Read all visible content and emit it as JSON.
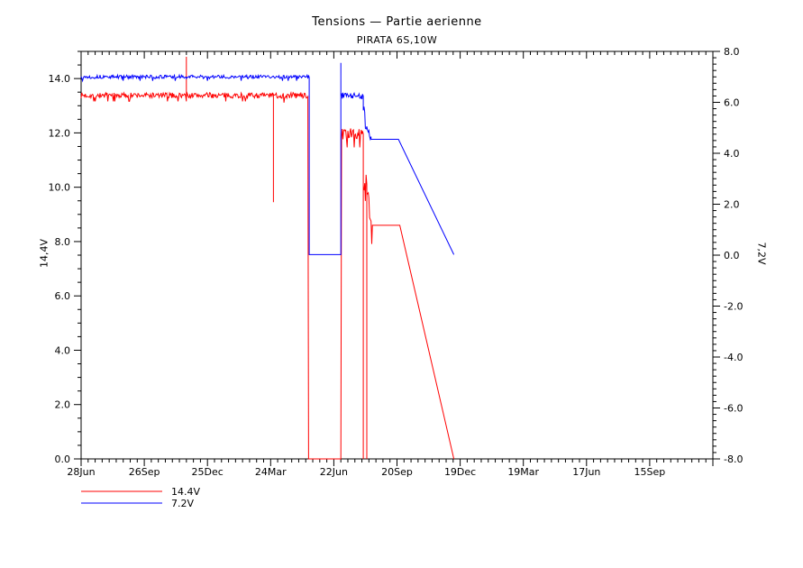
{
  "title": "Tensions — Partie aerienne",
  "subtitle": "PIRATA 6S,10W",
  "legend": [
    {
      "label": "14.4V",
      "color": "#ff0000"
    },
    {
      "label": "7.2V",
      "color": "#0000ff"
    }
  ],
  "colors": {
    "frame": "#000000",
    "background": "#ffffff",
    "series_red": "#ff0000",
    "series_blue": "#0000ff"
  },
  "axes": {
    "left": {
      "label": "14,4V",
      "tick_labels": [
        "0.0",
        "2.0",
        "4.0",
        "6.0",
        "8.0",
        "10.0",
        "12.0",
        "14.0"
      ]
    },
    "right": {
      "label": "7,2V",
      "tick_labels": [
        "-8.0",
        "-6.0",
        "-4.0",
        "-2.0",
        "0.0",
        "2.0",
        "4.0",
        "6.0",
        "8.0"
      ]
    },
    "x": {
      "tick_labels": [
        "28Jun",
        "26Sep",
        "25Dec",
        "24Mar",
        "22Jun",
        "20Sep",
        "19Dec",
        "19Mar",
        "17Jun",
        "15Sep"
      ]
    }
  },
  "chart_data": {
    "type": "line",
    "title": "Tensions — Partie aerienne",
    "subtitle": "PIRATA 6S,10W",
    "grid": false,
    "legend_position": "bottom-left",
    "x_axis": {
      "unit": "days since first sample",
      "tick_labels": [
        "28Jun",
        "26Sep",
        "25Dec",
        "24Mar",
        "22Jun",
        "20Sep",
        "19Dec",
        "19Mar",
        "17Jun",
        "15Sep"
      ],
      "major_interval_days": 90,
      "minor_interval_days": 10,
      "range_days": [
        0,
        900
      ]
    },
    "left_axis": {
      "label": "14,4V",
      "range": [
        0,
        15
      ],
      "major_step": 2,
      "minor_step": 0.5,
      "tick_values": [
        0,
        2,
        4,
        6,
        8,
        10,
        12,
        14
      ]
    },
    "right_axis": {
      "label": "7,2V",
      "range": [
        -8,
        8
      ],
      "major_step": 2,
      "minor_step": 0.25,
      "tick_values": [
        -8,
        -6,
        -4,
        -2,
        0,
        2,
        4,
        6,
        8
      ]
    },
    "series": [
      {
        "name": "14.4V",
        "color": "#ff0000",
        "axis": "left",
        "description": "Battery 14.4V voltage: ~13.4V steady, spikes, outage to 0V, recovery ~12V then ~8.6V, linear decay to 0V",
        "segments": [
          {
            "type": "noisy",
            "d1": 0,
            "d2": 150,
            "v": 13.38,
            "noise": 0.1
          },
          {
            "type": "spike",
            "d": 150,
            "v": 14.8
          },
          {
            "type": "noisy",
            "d1": 150,
            "d2": 273,
            "v": 13.38,
            "noise": 0.1
          },
          {
            "type": "spike",
            "d": 274,
            "v": 9.45
          },
          {
            "type": "noisy",
            "d1": 274,
            "d2": 323,
            "v": 13.38,
            "noise": 0.12
          },
          {
            "type": "flat",
            "d1": 324,
            "d2": 370,
            "v": 0.0
          },
          {
            "type": "noisy",
            "d1": 371,
            "d2": 401,
            "v": 11.95,
            "noise": 0.22
          },
          {
            "type": "spike",
            "d": 402,
            "v": 0.0
          },
          {
            "type": "noisyramp",
            "d1": 402,
            "d2": 407,
            "v1": 10.4,
            "v2": 9.8,
            "noise": 0.55
          },
          {
            "type": "spike",
            "d": 407,
            "v": 0.0
          },
          {
            "type": "noisyramp",
            "d1": 408,
            "d2": 414,
            "v1": 9.6,
            "v2": 8.9,
            "noise": 0.45
          },
          {
            "type": "flat",
            "d1": 415,
            "d2": 454,
            "v": 8.6
          },
          {
            "type": "ramp",
            "d1": 454,
            "d2": 531,
            "v1": 8.6,
            "v2": 0.0
          }
        ]
      },
      {
        "name": "7.2V",
        "color": "#0000ff",
        "axis": "right",
        "description": "Battery 7.2V voltage: ~7.0V steady, drop to 0V, recovery ~6.25V then ~4.55V, linear decay to 0V",
        "segments": [
          {
            "type": "noisy",
            "d1": 0,
            "d2": 325,
            "v": 7.0,
            "noise": 0.07
          },
          {
            "type": "flat",
            "d1": 325,
            "d2": 370,
            "v": 0.02
          },
          {
            "type": "spike",
            "d": 370,
            "v": 7.55
          },
          {
            "type": "noisy",
            "d1": 370,
            "d2": 402,
            "v": 6.25,
            "noise": 0.13
          },
          {
            "type": "noisyramp",
            "d1": 402,
            "d2": 413,
            "v1": 5.7,
            "v2": 4.45,
            "noise": 0.4
          },
          {
            "type": "flat",
            "d1": 413,
            "d2": 452,
            "v": 4.55
          },
          {
            "type": "ramp",
            "d1": 452,
            "d2": 531,
            "v1": 4.55,
            "v2": 0.02
          }
        ]
      }
    ]
  }
}
